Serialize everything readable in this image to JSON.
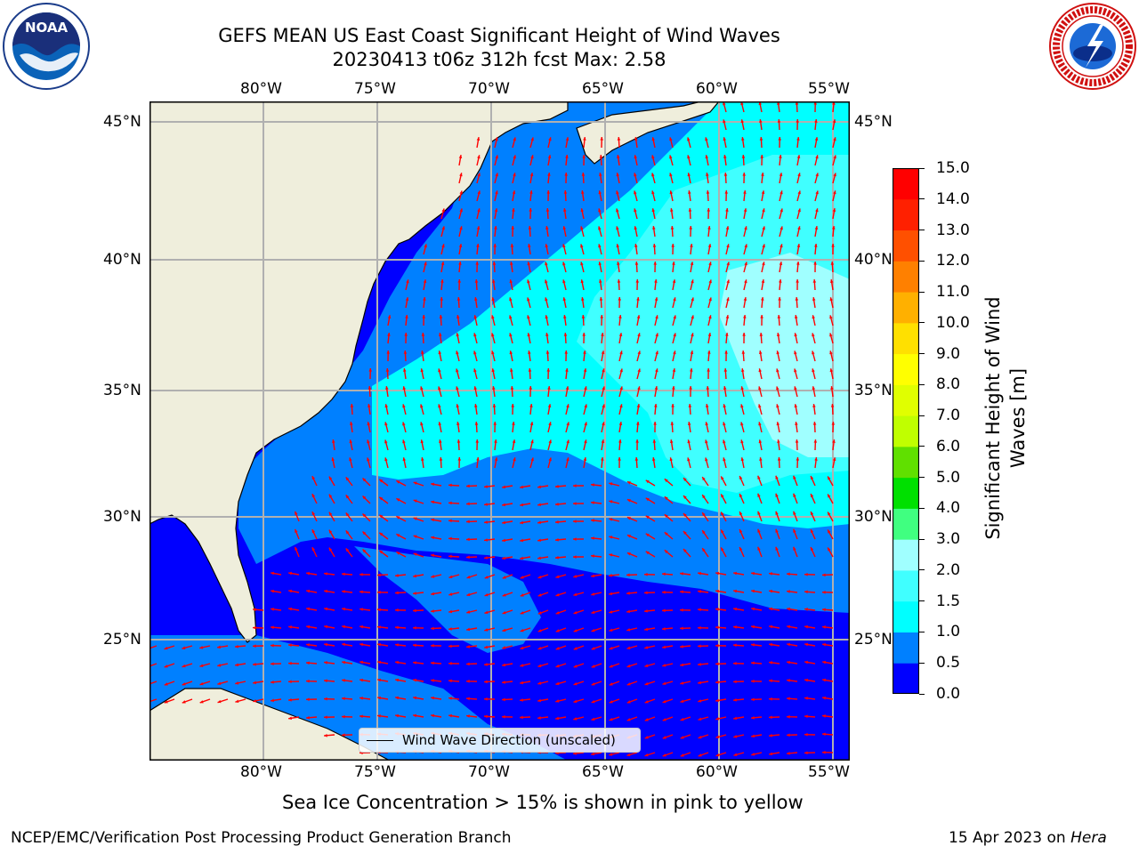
{
  "header": {
    "title_line1": "GEFS MEAN US East Coast Significant Height of Wind Waves",
    "title_line2": "20230413 t06z 312h fcst   Max: 2.58"
  },
  "logos": {
    "left": {
      "name": "noaa-logo",
      "text": "NOAA"
    },
    "right": {
      "name": "national-weather-service-logo",
      "text": "NATIONAL WEATHER SERVICE"
    }
  },
  "map": {
    "lon_labels": [
      "80°W",
      "75°W",
      "70°W",
      "65°W",
      "60°W",
      "55°W"
    ],
    "lat_labels": [
      "45°N",
      "40°N",
      "35°N",
      "30°N",
      "25°N"
    ],
    "legend_label": "Wind Wave Direction (unscaled)",
    "colors": {
      "land": "#efeedc",
      "gridline": "#b0b0b0",
      "arrows": "#ff0000",
      "coast": "#000000"
    }
  },
  "colorbar": {
    "label": "Significant Height of Wind Waves [m]",
    "ticks": [
      "0.0",
      "0.5",
      "1.0",
      "1.5",
      "2.0",
      "3.0",
      "4.0",
      "5.0",
      "6.0",
      "7.0",
      "8.0",
      "9.0",
      "10.0",
      "11.0",
      "12.0",
      "13.0",
      "14.0",
      "15.0"
    ],
    "colors": [
      "#0000ff",
      "#0080ff",
      "#00ffff",
      "#40ffff",
      "#a0ffff",
      "#40ff80",
      "#00e000",
      "#60e000",
      "#c0ff00",
      "#e0ff00",
      "#ffff00",
      "#ffe000",
      "#ffb000",
      "#ff8000",
      "#ff5000",
      "#ff2000",
      "#ff0000"
    ]
  },
  "note": "Sea Ice Concentration > 15% is shown in pink to yellow",
  "footer": {
    "left": "NCEP/EMC/Verification Post Processing Product Generation Branch",
    "right_date": "15 Apr 2023 on ",
    "right_host": "Hera"
  }
}
